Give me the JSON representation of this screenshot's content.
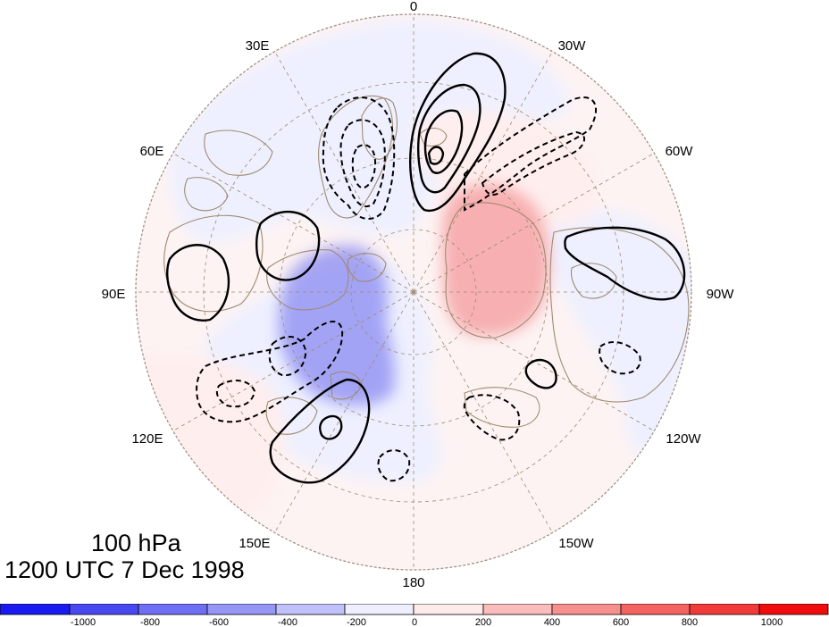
{
  "title": {
    "level": "100 hPa",
    "time": "1200 UTC 7 Dec 1998"
  },
  "map": {
    "projection": "north polar stereographic",
    "longitude_labels": [
      "0",
      "30W",
      "60W",
      "90W",
      "120W",
      "150W",
      "180",
      "150E",
      "120E",
      "90E",
      "60E",
      "30E"
    ],
    "shading_colors": {
      "strong_negative": "#8a8af2",
      "weak_negative": "#eef0ff",
      "weak_positive": "#ffeeee",
      "strong_positive": "#f6a4a6"
    },
    "coastline_color": "#a08a70",
    "graticule_color": "#a08a70",
    "contour_color": "#000000",
    "contour_styles": [
      "solid positive",
      "dashed negative"
    ]
  },
  "colorbar": {
    "tick_labels": [
      "-1000",
      "-800",
      "-600",
      "-400",
      "-200",
      "0",
      "200",
      "400",
      "600",
      "800",
      "1000"
    ],
    "colors": [
      "#1a1af0",
      "#4848f3",
      "#6f6ff5",
      "#9696f7",
      "#c0c0fa",
      "#eeeeff",
      "#ffeaea",
      "#fbbcbc",
      "#f78f8f",
      "#f46262",
      "#f23a3a",
      "#f00c0c"
    ]
  }
}
